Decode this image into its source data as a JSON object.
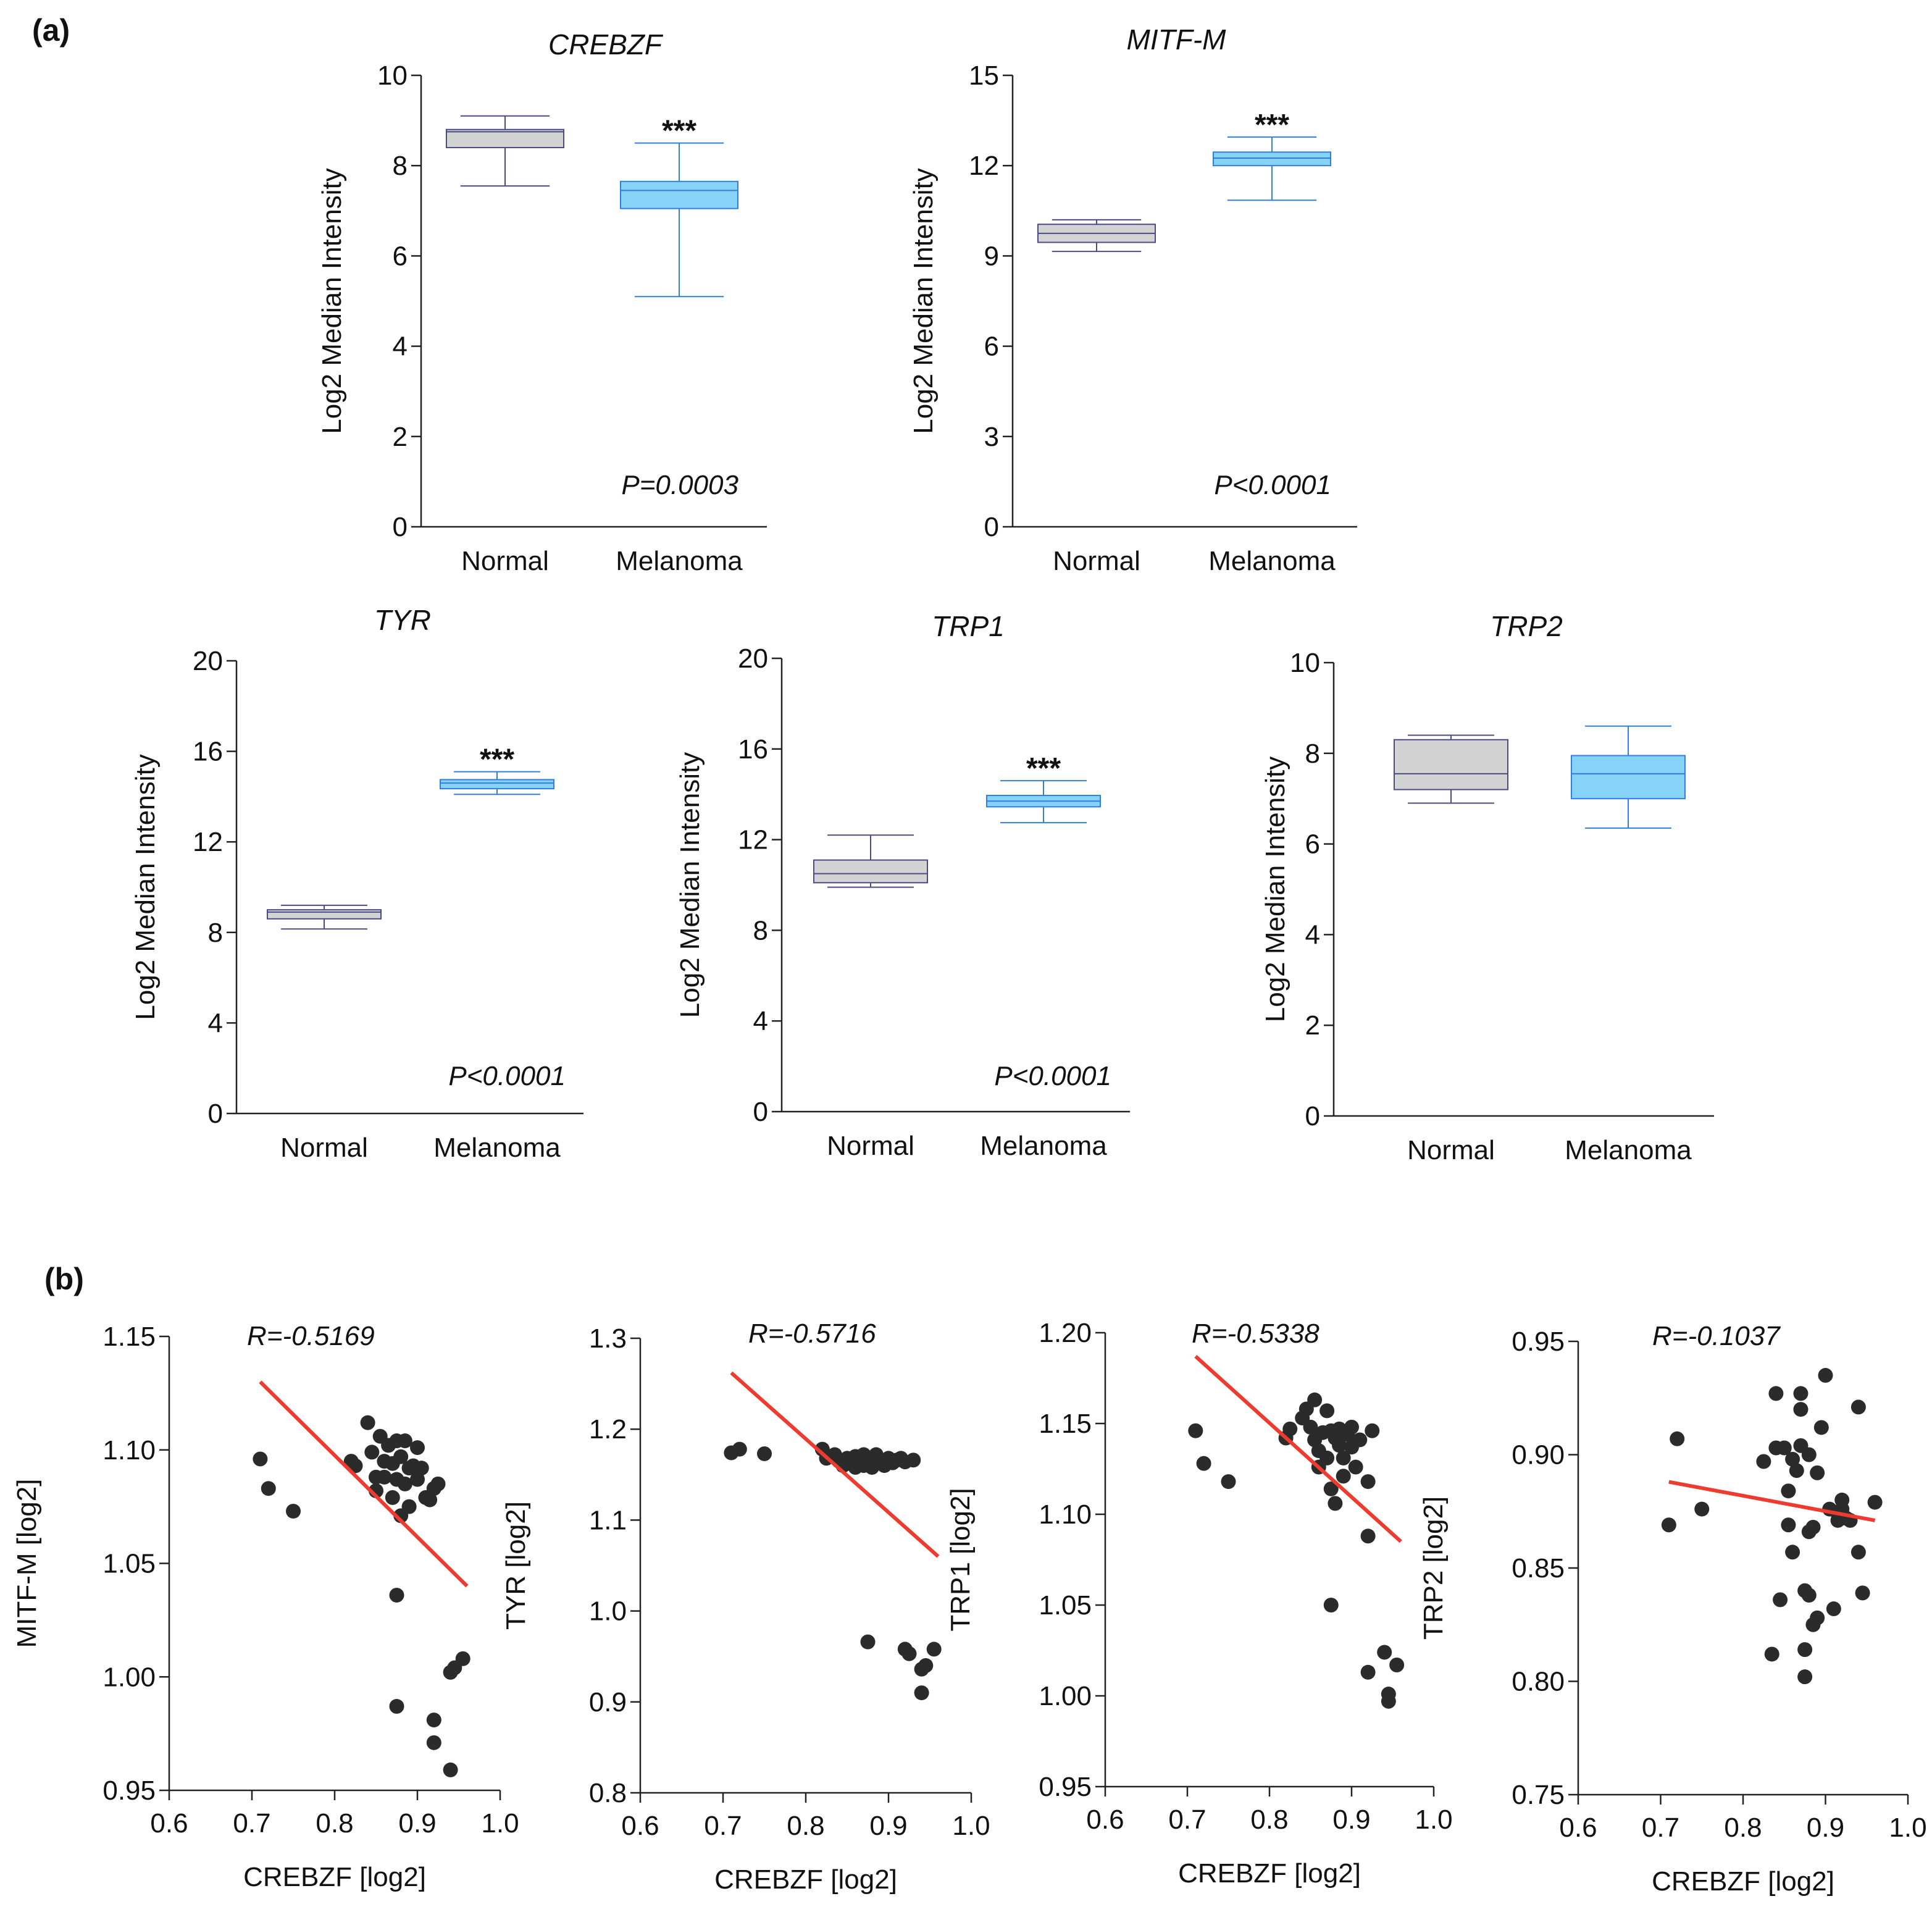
{
  "panel_labels": {
    "a": "(a)",
    "b": "(b)"
  },
  "chart_data": [
    {
      "type": "box",
      "panel": "a",
      "title": "CREBZF",
      "ylabel": "Log2  Median  Intensity",
      "ylim": [
        0,
        10
      ],
      "yticks": [
        0,
        2,
        4,
        6,
        8,
        10
      ],
      "categories": [
        "Normal",
        "Melanoma"
      ],
      "boxes": [
        {
          "min": 7.55,
          "q1": 8.4,
          "median": 8.75,
          "q3": 8.8,
          "max": 9.1
        },
        {
          "min": 5.1,
          "q1": 7.05,
          "median": 7.45,
          "q3": 7.65,
          "max": 8.5
        }
      ],
      "significance": "***",
      "p_value": "P=0.0003"
    },
    {
      "type": "box",
      "panel": "a",
      "title": "MITF-M",
      "ylabel": "Log2  Median  Intensity",
      "ylim": [
        0,
        15
      ],
      "yticks": [
        0,
        3,
        6,
        9,
        12,
        15
      ],
      "categories": [
        "Normal",
        "Melanoma"
      ],
      "boxes": [
        {
          "min": 9.15,
          "q1": 9.45,
          "median": 9.75,
          "q3": 10.05,
          "max": 10.2
        },
        {
          "min": 10.85,
          "q1": 12.0,
          "median": 12.25,
          "q3": 12.45,
          "max": 12.95
        }
      ],
      "significance": "***",
      "p_value": "P<0.0001"
    },
    {
      "type": "box",
      "panel": "a",
      "title": "TYR",
      "ylabel": "Log2  Median  Intensity",
      "ylim": [
        0,
        20
      ],
      "yticks": [
        0,
        4,
        8,
        12,
        16,
        20
      ],
      "categories": [
        "Normal",
        "Melanoma"
      ],
      "boxes": [
        {
          "min": 8.15,
          "q1": 8.6,
          "median": 8.9,
          "q3": 9.0,
          "max": 9.2
        },
        {
          "min": 14.1,
          "q1": 14.35,
          "median": 14.6,
          "q3": 14.75,
          "max": 15.1
        }
      ],
      "significance": "***",
      "p_value": "P<0.0001"
    },
    {
      "type": "box",
      "panel": "a",
      "title": "TRP1",
      "ylabel": "Log2  Median  Intensity",
      "ylim": [
        0,
        20
      ],
      "yticks": [
        0,
        4,
        8,
        12,
        16,
        20
      ],
      "categories": [
        "Normal",
        "Melanoma"
      ],
      "boxes": [
        {
          "min": 9.9,
          "q1": 10.1,
          "median": 10.5,
          "q3": 11.1,
          "max": 12.2
        },
        {
          "min": 12.75,
          "q1": 13.45,
          "median": 13.7,
          "q3": 13.95,
          "max": 14.6
        }
      ],
      "significance": "***",
      "p_value": "P<0.0001"
    },
    {
      "type": "box",
      "panel": "a",
      "title": "TRP2",
      "ylabel": "Log2  Median  Intensity",
      "ylim": [
        0,
        10
      ],
      "yticks": [
        0,
        2,
        4,
        6,
        8,
        10
      ],
      "categories": [
        "Normal",
        "Melanoma"
      ],
      "boxes": [
        {
          "min": 6.9,
          "q1": 7.2,
          "median": 7.55,
          "q3": 8.3,
          "max": 8.4
        },
        {
          "min": 6.35,
          "q1": 7.0,
          "median": 7.55,
          "q3": 7.95,
          "max": 8.6
        }
      ],
      "significance": "",
      "p_value": ""
    },
    {
      "type": "scatter",
      "panel": "b",
      "xlabel": "CREBZF [log2]",
      "ylabel": "MITF-M [log2]",
      "xlim": [
        0.6,
        1.0
      ],
      "ylim": [
        0.95,
        1.15
      ],
      "xticks": [
        0.6,
        0.7,
        0.8,
        0.9,
        1.0
      ],
      "yticks": [
        0.95,
        1.0,
        1.05,
        1.1,
        1.15
      ],
      "r_text": "R=-0.5169",
      "fit": [
        [
          0.71,
          1.13
        ],
        [
          0.96,
          1.04
        ]
      ],
      "points": [
        [
          0.71,
          1.096
        ],
        [
          0.72,
          1.083
        ],
        [
          0.75,
          1.073
        ],
        [
          0.82,
          1.095
        ],
        [
          0.825,
          1.093
        ],
        [
          0.84,
          1.112
        ],
        [
          0.845,
          1.099
        ],
        [
          0.85,
          1.088
        ],
        [
          0.85,
          1.082
        ],
        [
          0.855,
          1.106
        ],
        [
          0.86,
          1.095
        ],
        [
          0.86,
          1.088
        ],
        [
          0.865,
          1.102
        ],
        [
          0.87,
          1.094
        ],
        [
          0.87,
          1.079
        ],
        [
          0.875,
          1.087
        ],
        [
          0.875,
          1.104
        ],
        [
          0.88,
          1.097
        ],
        [
          0.88,
          1.071
        ],
        [
          0.885,
          1.104
        ],
        [
          0.885,
          1.085
        ],
        [
          0.89,
          1.092
        ],
        [
          0.89,
          1.075
        ],
        [
          0.895,
          1.093
        ],
        [
          0.9,
          1.087
        ],
        [
          0.9,
          1.101
        ],
        [
          0.905,
          1.092
        ],
        [
          0.91,
          1.079
        ],
        [
          0.915,
          1.078
        ],
        [
          0.92,
          1.083
        ],
        [
          0.925,
          1.085
        ],
        [
          0.875,
          1.036
        ],
        [
          0.875,
          0.987
        ],
        [
          0.92,
          0.981
        ],
        [
          0.92,
          0.971
        ],
        [
          0.94,
          1.002
        ],
        [
          0.945,
          1.004
        ],
        [
          0.955,
          1.008
        ],
        [
          0.94,
          0.959
        ]
      ]
    },
    {
      "type": "scatter",
      "panel": "b",
      "xlabel": "CREBZF [log2]",
      "ylabel": "TYR [log2]",
      "xlim": [
        0.6,
        1.0
      ],
      "ylim": [
        0.8,
        1.3
      ],
      "xticks": [
        0.6,
        0.7,
        0.8,
        0.9,
        1.0
      ],
      "yticks": [
        0.8,
        0.9,
        1.0,
        1.1,
        1.2,
        1.3
      ],
      "r_text": "R=-0.5716",
      "fit": [
        [
          0.71,
          1.262
        ],
        [
          0.96,
          1.06
        ]
      ],
      "points": [
        [
          0.71,
          1.174
        ],
        [
          0.72,
          1.178
        ],
        [
          0.75,
          1.173
        ],
        [
          0.82,
          1.178
        ],
        [
          0.825,
          1.168
        ],
        [
          0.835,
          1.172
        ],
        [
          0.84,
          1.165
        ],
        [
          0.845,
          1.16
        ],
        [
          0.85,
          1.168
        ],
        [
          0.855,
          1.162
        ],
        [
          0.86,
          1.158
        ],
        [
          0.86,
          1.17
        ],
        [
          0.865,
          1.165
        ],
        [
          0.87,
          1.16
        ],
        [
          0.87,
          1.172
        ],
        [
          0.875,
          1.163
        ],
        [
          0.88,
          1.167
        ],
        [
          0.88,
          1.158
        ],
        [
          0.885,
          1.172
        ],
        [
          0.89,
          1.165
        ],
        [
          0.895,
          1.16
        ],
        [
          0.9,
          1.168
        ],
        [
          0.905,
          1.163
        ],
        [
          0.91,
          1.166
        ],
        [
          0.915,
          1.168
        ],
        [
          0.92,
          1.164
        ],
        [
          0.93,
          1.166
        ],
        [
          0.875,
          0.966
        ],
        [
          0.92,
          0.958
        ],
        [
          0.925,
          0.953
        ],
        [
          0.94,
          0.936
        ],
        [
          0.945,
          0.94
        ],
        [
          0.955,
          0.958
        ],
        [
          0.94,
          0.91
        ]
      ]
    },
    {
      "type": "scatter",
      "panel": "b",
      "xlabel": "CREBZF [log2]",
      "ylabel": "TRP1 [log2]",
      "xlim": [
        0.6,
        1.0
      ],
      "ylim": [
        0.95,
        1.2
      ],
      "xticks": [
        0.6,
        0.7,
        0.8,
        0.9,
        1.0
      ],
      "yticks": [
        0.95,
        1.0,
        1.05,
        1.1,
        1.15,
        1.2
      ],
      "r_text": "R=-0.5338",
      "fit": [
        [
          0.71,
          1.187
        ],
        [
          0.96,
          1.085
        ]
      ],
      "points": [
        [
          0.71,
          1.146
        ],
        [
          0.72,
          1.128
        ],
        [
          0.75,
          1.118
        ],
        [
          0.82,
          1.142
        ],
        [
          0.825,
          1.147
        ],
        [
          0.84,
          1.153
        ],
        [
          0.845,
          1.158
        ],
        [
          0.85,
          1.148
        ],
        [
          0.855,
          1.163
        ],
        [
          0.855,
          1.141
        ],
        [
          0.86,
          1.135
        ],
        [
          0.86,
          1.126
        ],
        [
          0.865,
          1.145
        ],
        [
          0.87,
          1.157
        ],
        [
          0.87,
          1.131
        ],
        [
          0.875,
          1.146
        ],
        [
          0.875,
          1.114
        ],
        [
          0.88,
          1.142
        ],
        [
          0.88,
          1.106
        ],
        [
          0.885,
          1.147
        ],
        [
          0.885,
          1.138
        ],
        [
          0.89,
          1.131
        ],
        [
          0.89,
          1.121
        ],
        [
          0.895,
          1.144
        ],
        [
          0.9,
          1.148
        ],
        [
          0.9,
          1.137
        ],
        [
          0.905,
          1.126
        ],
        [
          0.91,
          1.141
        ],
        [
          0.92,
          1.118
        ],
        [
          0.925,
          1.146
        ],
        [
          0.875,
          1.05
        ],
        [
          0.92,
          1.088
        ],
        [
          0.92,
          1.013
        ],
        [
          0.94,
          1.024
        ],
        [
          0.945,
          1.001
        ],
        [
          0.955,
          1.017
        ],
        [
          0.945,
          0.997
        ]
      ]
    },
    {
      "type": "scatter",
      "panel": "b",
      "xlabel": "CREBZF [log2]",
      "ylabel": "TRP2 [log2]",
      "xlim": [
        0.6,
        1.0
      ],
      "ylim": [
        0.75,
        0.95
      ],
      "xticks": [
        0.6,
        0.7,
        0.8,
        0.9,
        1.0
      ],
      "yticks": [
        0.75,
        0.8,
        0.85,
        0.9,
        0.95
      ],
      "r_text": "R=-0.1037",
      "fit": [
        [
          0.71,
          0.888
        ],
        [
          0.96,
          0.871
        ]
      ],
      "points": [
        [
          0.71,
          0.869
        ],
        [
          0.72,
          0.907
        ],
        [
          0.75,
          0.876
        ],
        [
          0.825,
          0.897
        ],
        [
          0.835,
          0.812
        ],
        [
          0.84,
          0.927
        ],
        [
          0.84,
          0.903
        ],
        [
          0.845,
          0.836
        ],
        [
          0.85,
          0.903
        ],
        [
          0.855,
          0.884
        ],
        [
          0.855,
          0.869
        ],
        [
          0.86,
          0.898
        ],
        [
          0.86,
          0.857
        ],
        [
          0.865,
          0.893
        ],
        [
          0.87,
          0.927
        ],
        [
          0.87,
          0.92
        ],
        [
          0.87,
          0.904
        ],
        [
          0.875,
          0.84
        ],
        [
          0.875,
          0.814
        ],
        [
          0.875,
          0.802
        ],
        [
          0.88,
          0.9
        ],
        [
          0.88,
          0.866
        ],
        [
          0.88,
          0.838
        ],
        [
          0.885,
          0.868
        ],
        [
          0.885,
          0.825
        ],
        [
          0.89,
          0.828
        ],
        [
          0.89,
          0.892
        ],
        [
          0.895,
          0.912
        ],
        [
          0.9,
          0.935
        ],
        [
          0.905,
          0.876
        ],
        [
          0.91,
          0.832
        ],
        [
          0.915,
          0.871
        ],
        [
          0.915,
          0.874
        ],
        [
          0.92,
          0.88
        ],
        [
          0.92,
          0.876
        ],
        [
          0.925,
          0.872
        ],
        [
          0.93,
          0.871
        ],
        [
          0.94,
          0.921
        ],
        [
          0.94,
          0.857
        ],
        [
          0.945,
          0.839
        ],
        [
          0.96,
          0.879
        ]
      ]
    }
  ]
}
